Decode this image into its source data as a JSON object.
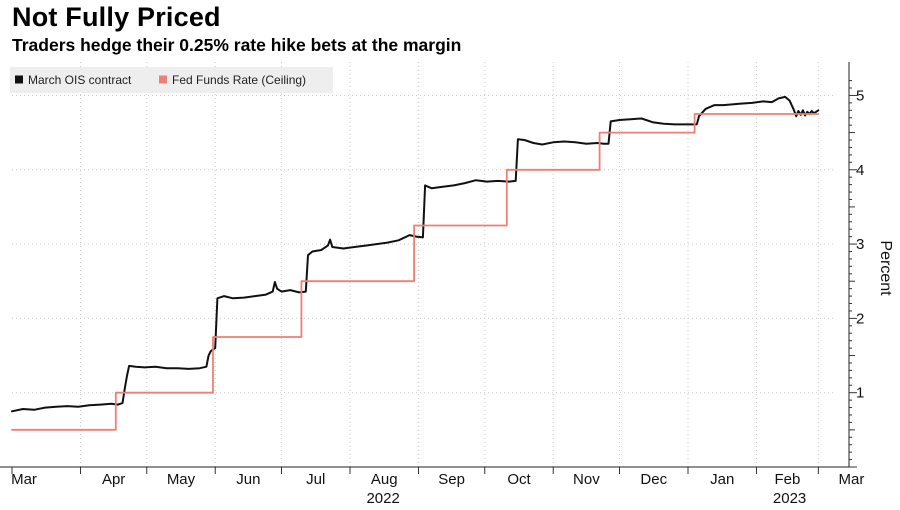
{
  "title": "Not Fully Priced",
  "subtitle": "Traders hedge their 0.25% rate hike bets at the margin",
  "colors": {
    "ois": "#111111",
    "fed": "#f07f73",
    "grid": "#c9c9c9",
    "legend_bg": "#eeeeee"
  },
  "chart_data": {
    "type": "line",
    "title": "Not Fully Priced",
    "subtitle": "Traders hedge their 0.25% rate hike bets at the margin",
    "xlabel": "",
    "ylabel": "Percent",
    "ylim": [
      0,
      5.45
    ],
    "yticks": [
      1,
      2,
      3,
      4,
      5
    ],
    "x_unit": "days since 2022-03-01",
    "xlim": [
      0,
      373
    ],
    "xticks": [
      {
        "label": "Mar",
        "x": 0
      },
      {
        "label": "Apr",
        "x": 31
      },
      {
        "label": "May",
        "x": 61
      },
      {
        "label": "Jun",
        "x": 92
      },
      {
        "label": "Jul",
        "x": 122
      },
      {
        "label": "Aug",
        "x": 153
      },
      {
        "label": "Sep",
        "x": 184
      },
      {
        "label": "Oct",
        "x": 214
      },
      {
        "label": "Nov",
        "x": 245
      },
      {
        "label": "Dec",
        "x": 275
      },
      {
        "label": "Jan",
        "x": 306
      },
      {
        "label": "Feb",
        "x": 337
      },
      {
        "label": "Mar",
        "x": 365
      }
    ],
    "year_labels": [
      {
        "label": "2022",
        "x": 153
      },
      {
        "label": "2023",
        "x": 337
      }
    ],
    "legend": [
      "March OIS contract",
      "Fed Funds Rate (Ceiling)"
    ],
    "series": [
      {
        "name": "March OIS contract",
        "color": "#111111",
        "points": [
          [
            0,
            0.75
          ],
          [
            5,
            0.78
          ],
          [
            10,
            0.77
          ],
          [
            15,
            0.8
          ],
          [
            20,
            0.81
          ],
          [
            25,
            0.82
          ],
          [
            30,
            0.81
          ],
          [
            35,
            0.83
          ],
          [
            40,
            0.84
          ],
          [
            45,
            0.85
          ],
          [
            48,
            0.84
          ],
          [
            50,
            0.86
          ],
          [
            51,
            1.05
          ],
          [
            52,
            1.22
          ],
          [
            53,
            1.36
          ],
          [
            56,
            1.35
          ],
          [
            60,
            1.34
          ],
          [
            65,
            1.35
          ],
          [
            70,
            1.33
          ],
          [
            75,
            1.33
          ],
          [
            80,
            1.32
          ],
          [
            85,
            1.33
          ],
          [
            88,
            1.35
          ],
          [
            89,
            1.5
          ],
          [
            90,
            1.56
          ],
          [
            92,
            1.6
          ],
          [
            93,
            2.27
          ],
          [
            96,
            2.3
          ],
          [
            100,
            2.27
          ],
          [
            105,
            2.28
          ],
          [
            110,
            2.3
          ],
          [
            115,
            2.32
          ],
          [
            118,
            2.36
          ],
          [
            119,
            2.49
          ],
          [
            120,
            2.4
          ],
          [
            122,
            2.36
          ],
          [
            126,
            2.38
          ],
          [
            130,
            2.35
          ],
          [
            133,
            2.36
          ],
          [
            134,
            2.85
          ],
          [
            136,
            2.9
          ],
          [
            140,
            2.92
          ],
          [
            143,
            2.98
          ],
          [
            144,
            3.06
          ],
          [
            145,
            2.96
          ],
          [
            150,
            2.94
          ],
          [
            155,
            2.96
          ],
          [
            160,
            2.98
          ],
          [
            165,
            3.0
          ],
          [
            170,
            3.02
          ],
          [
            175,
            3.05
          ],
          [
            180,
            3.12
          ],
          [
            183,
            3.1
          ],
          [
            186,
            3.09
          ],
          [
            187,
            3.79
          ],
          [
            190,
            3.75
          ],
          [
            195,
            3.77
          ],
          [
            200,
            3.79
          ],
          [
            205,
            3.82
          ],
          [
            210,
            3.86
          ],
          [
            215,
            3.84
          ],
          [
            220,
            3.85
          ],
          [
            225,
            3.84
          ],
          [
            228,
            3.85
          ],
          [
            229,
            4.41
          ],
          [
            232,
            4.4
          ],
          [
            236,
            4.36
          ],
          [
            240,
            4.34
          ],
          [
            245,
            4.37
          ],
          [
            250,
            4.38
          ],
          [
            255,
            4.37
          ],
          [
            260,
            4.35
          ],
          [
            265,
            4.36
          ],
          [
            268,
            4.35
          ],
          [
            270,
            4.35
          ],
          [
            271,
            4.65
          ],
          [
            275,
            4.67
          ],
          [
            280,
            4.68
          ],
          [
            285,
            4.69
          ],
          [
            290,
            4.64
          ],
          [
            295,
            4.62
          ],
          [
            300,
            4.61
          ],
          [
            305,
            4.61
          ],
          [
            310,
            4.61
          ],
          [
            311,
            4.72
          ],
          [
            314,
            4.82
          ],
          [
            318,
            4.87
          ],
          [
            322,
            4.87
          ],
          [
            326,
            4.88
          ],
          [
            330,
            4.89
          ],
          [
            335,
            4.9
          ],
          [
            340,
            4.92
          ],
          [
            344,
            4.91
          ],
          [
            347,
            4.96
          ],
          [
            350,
            4.98
          ],
          [
            352,
            4.93
          ],
          [
            354,
            4.8
          ],
          [
            355,
            4.72
          ],
          [
            356,
            4.79
          ],
          [
            357,
            4.74
          ],
          [
            358,
            4.8
          ],
          [
            359,
            4.73
          ],
          [
            360,
            4.78
          ],
          [
            361,
            4.75
          ],
          [
            362,
            4.79
          ],
          [
            363,
            4.76
          ],
          [
            365,
            4.8
          ]
        ]
      },
      {
        "name": "Fed Funds Rate (Ceiling)",
        "color": "#f07f73",
        "points": [
          [
            0,
            0.5
          ],
          [
            47,
            0.5
          ],
          [
            47,
            1.0
          ],
          [
            91,
            1.0
          ],
          [
            91,
            1.75
          ],
          [
            131,
            1.75
          ],
          [
            131,
            2.5
          ],
          [
            182,
            2.5
          ],
          [
            182,
            3.25
          ],
          [
            224,
            3.25
          ],
          [
            224,
            4.0
          ],
          [
            266,
            4.0
          ],
          [
            266,
            4.5
          ],
          [
            309,
            4.5
          ],
          [
            309,
            4.75
          ],
          [
            365,
            4.75
          ]
        ]
      }
    ]
  }
}
